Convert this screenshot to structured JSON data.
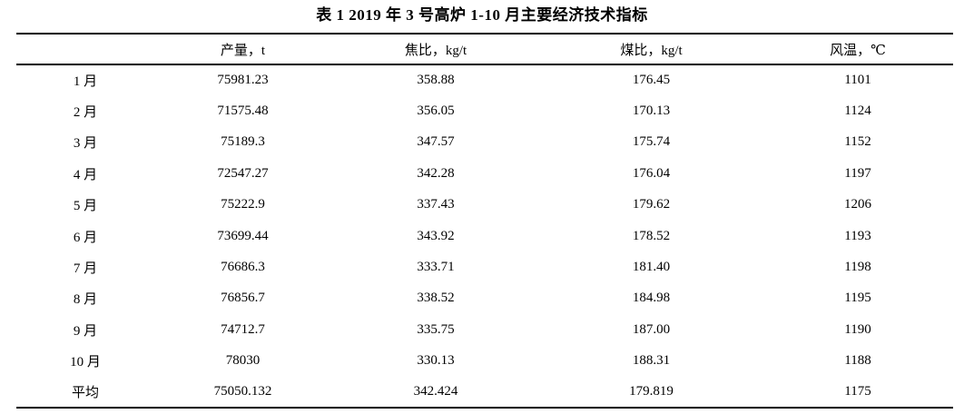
{
  "chart_data": {
    "type": "table",
    "title": "表 1  2019 年 3 号高炉 1-10 月主要经济技术指标",
    "columns": [
      "",
      "产量，t",
      "焦比，kg/t",
      "煤比，kg/t",
      "风温，℃"
    ],
    "rows": [
      [
        "1 月",
        "75981.23",
        "358.88",
        "176.45",
        "1101"
      ],
      [
        "2 月",
        "71575.48",
        "356.05",
        "170.13",
        "1124"
      ],
      [
        "3 月",
        "75189.3",
        "347.57",
        "175.74",
        "1152"
      ],
      [
        "4 月",
        "72547.27",
        "342.28",
        "176.04",
        "1197"
      ],
      [
        "5 月",
        "75222.9",
        "337.43",
        "179.62",
        "1206"
      ],
      [
        "6 月",
        "73699.44",
        "343.92",
        "178.52",
        "1193"
      ],
      [
        "7 月",
        "76686.3",
        "333.71",
        "181.40",
        "1198"
      ],
      [
        "8 月",
        "76856.7",
        "338.52",
        "184.98",
        "1195"
      ],
      [
        "9 月",
        "74712.7",
        "335.75",
        "187.00",
        "1190"
      ],
      [
        "10 月",
        "78030",
        "330.13",
        "188.31",
        "1188"
      ],
      [
        "平均",
        "75050.132",
        "342.424",
        "179.819",
        "1175"
      ]
    ]
  }
}
